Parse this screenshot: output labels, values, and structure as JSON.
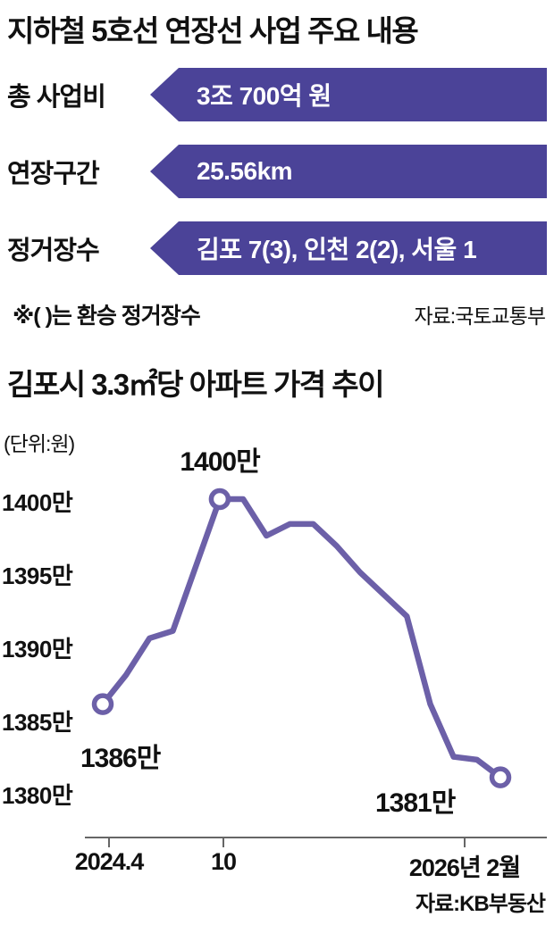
{
  "header": {
    "title": "지하철 5호선 연장선 사업 주요 내용"
  },
  "info_rows": [
    {
      "label": "총 사업비",
      "value": "3조 700억 원"
    },
    {
      "label": "연장구간",
      "value": "25.56km"
    },
    {
      "label": "정거장수",
      "value": "김포 7(3), 인천 2(2), 서울 1"
    }
  ],
  "footnote": {
    "note": "※(  )는 환승 정거장수",
    "source": "자료:국토교통부"
  },
  "chart": {
    "title": "김포시 3.3㎡당 아파트 가격 추이",
    "unit_label": "(단위:원)",
    "source": "자료:KB부동산"
  },
  "chart_data": {
    "type": "line",
    "title": "김포시 3.3㎡당 아파트 가격 추이",
    "unit": "만 원 (per 3.3㎡)",
    "series": [
      {
        "name": "김포시 3.3㎡당 아파트 가격",
        "values": [
          1386,
          1388,
          1390.5,
          1391,
          1395.5,
          1400,
          1400,
          1397.5,
          1398.3,
          1398.3,
          1396.8,
          1395,
          1393.5,
          1392,
          1386,
          1382.4,
          1382.2,
          1381
        ]
      }
    ],
    "x_range": [
      "2024.4",
      "2026년 2월"
    ],
    "x_ticks": [
      {
        "label": "2024.4",
        "index": 0
      },
      {
        "label": "10",
        "index": 5
      },
      {
        "label": "2026년 2월",
        "index": 17
      }
    ],
    "y_tick_labels": [
      "1400만",
      "1395만",
      "1390만",
      "1385만",
      "1380만"
    ],
    "ylim": [
      1378,
      1403
    ],
    "grid": false,
    "legend": "none",
    "annotations": [
      {
        "label": "1386만",
        "index": 0
      },
      {
        "label": "1400만",
        "index": 5
      },
      {
        "label": "1381만",
        "index": 17
      }
    ],
    "marker_indices": [
      0,
      5,
      17
    ],
    "line_color": "#6c60a8"
  },
  "colors": {
    "banner_bg": "#4b4398",
    "line": "#6c60a8",
    "text": "#111111"
  }
}
